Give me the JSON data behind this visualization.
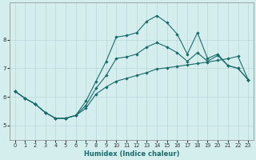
{
  "xlabel": "Humidex (Indice chaleur)",
  "bg_color": "#d4eeee",
  "grid_color": "#b8d8d8",
  "line_color": "#1a6b6b",
  "xlim": [
    -0.5,
    23.5
  ],
  "ylim": [
    4.5,
    9.3
  ],
  "xticks": [
    0,
    1,
    2,
    3,
    4,
    5,
    6,
    7,
    8,
    9,
    10,
    11,
    12,
    13,
    14,
    15,
    16,
    17,
    18,
    19,
    20,
    21,
    22,
    23
  ],
  "yticks": [
    5,
    6,
    7,
    8
  ],
  "line_top_x": [
    0,
    1,
    2,
    3,
    4,
    5,
    6,
    7,
    8,
    9,
    10,
    11,
    12,
    13,
    14,
    15,
    16,
    17,
    18,
    19,
    20,
    21,
    22,
    23
  ],
  "line_top_y": [
    6.2,
    5.95,
    5.75,
    5.45,
    5.25,
    5.25,
    5.35,
    5.85,
    6.55,
    7.25,
    8.1,
    8.15,
    8.25,
    8.65,
    8.85,
    8.6,
    8.2,
    7.5,
    8.25,
    7.35,
    7.5,
    7.1,
    7.0,
    6.6
  ],
  "line_mid_x": [
    0,
    1,
    2,
    3,
    4,
    5,
    6,
    7,
    8,
    9,
    10,
    11,
    12,
    13,
    14,
    15,
    16,
    17,
    18,
    19,
    20,
    21,
    22,
    23
  ],
  "line_mid_y": [
    6.2,
    5.95,
    5.75,
    5.45,
    5.25,
    5.25,
    5.35,
    5.7,
    6.3,
    6.75,
    7.35,
    7.4,
    7.5,
    7.75,
    7.9,
    7.75,
    7.55,
    7.25,
    7.55,
    7.25,
    7.45,
    7.1,
    7.0,
    6.6
  ],
  "line_bot_x": [
    0,
    1,
    2,
    3,
    4,
    5,
    6,
    7,
    8,
    9,
    10,
    11,
    12,
    13,
    14,
    15,
    16,
    17,
    18,
    19,
    20,
    21,
    22,
    23
  ],
  "line_bot_y": [
    6.2,
    5.95,
    5.75,
    5.45,
    5.25,
    5.25,
    5.35,
    5.6,
    6.1,
    6.35,
    6.55,
    6.65,
    6.75,
    6.85,
    6.98,
    7.02,
    7.07,
    7.12,
    7.17,
    7.22,
    7.28,
    7.34,
    7.42,
    6.6
  ]
}
